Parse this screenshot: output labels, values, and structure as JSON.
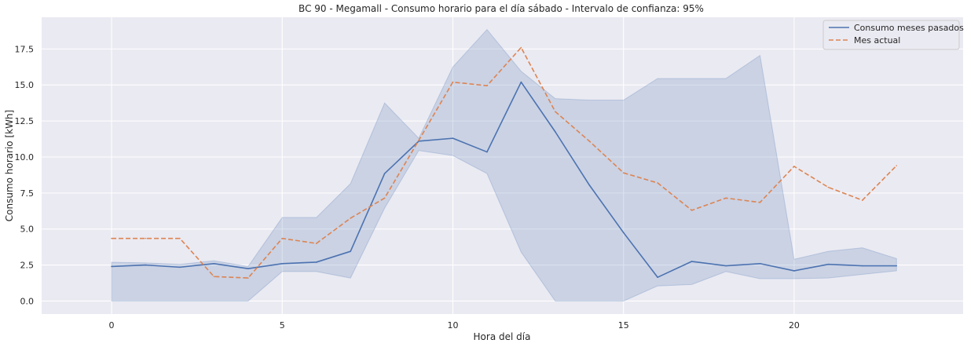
{
  "chart_data": {
    "type": "line",
    "title": "BC 90 - Megamall - Consumo horario para el día sábado - Intervalo de confianza: 95%",
    "xlabel": "Hora del día",
    "ylabel": "Consumo horario [kWh]",
    "xlim": [
      -2.05,
      24.95
    ],
    "ylim": [
      -0.9,
      19.7
    ],
    "xticks": [
      0,
      5,
      10,
      15,
      20
    ],
    "yticks": [
      0.0,
      2.5,
      5.0,
      7.5,
      10.0,
      12.5,
      15.0,
      17.5
    ],
    "ytick_labels": [
      "0.0",
      "2.5",
      "5.0",
      "7.5",
      "10.0",
      "12.5",
      "15.0",
      "17.5"
    ],
    "grid": true,
    "legend_position": "top-right",
    "x": [
      0,
      1,
      2,
      3,
      4,
      5,
      6,
      7,
      8,
      9,
      10,
      11,
      12,
      13,
      14,
      15,
      16,
      17,
      18,
      19,
      20,
      21,
      22,
      23
    ],
    "series": [
      {
        "name": "Consumo meses pasados",
        "color": "#4c72b0",
        "style": "solid",
        "values": [
          2.4,
          2.5,
          2.35,
          2.6,
          2.25,
          2.6,
          2.7,
          3.45,
          8.85,
          11.1,
          11.3,
          10.35,
          15.2,
          11.75,
          8.05,
          4.75,
          1.65,
          2.75,
          2.45,
          2.6,
          2.1,
          2.55,
          2.45,
          2.45
        ],
        "ci_lower": [
          0.0,
          0.0,
          0.0,
          0.0,
          0.0,
          2.05,
          2.05,
          1.6,
          6.45,
          10.45,
          10.1,
          8.85,
          3.4,
          0.0,
          0.0,
          0.0,
          1.05,
          1.15,
          2.05,
          1.55,
          1.55,
          1.6,
          1.85,
          2.1
        ],
        "ci_upper": [
          2.7,
          2.65,
          2.55,
          2.8,
          2.4,
          5.8,
          5.8,
          8.15,
          13.75,
          11.3,
          16.25,
          18.85,
          15.95,
          14.05,
          13.95,
          13.95,
          15.45,
          15.45,
          15.45,
          17.05,
          2.9,
          3.45,
          3.7,
          2.95
        ]
      },
      {
        "name": "Mes actual",
        "color": "#dd8452",
        "style": "dashed",
        "values": [
          4.35,
          4.35,
          4.35,
          1.7,
          1.6,
          4.35,
          4.0,
          5.75,
          7.15,
          11.15,
          15.2,
          14.95,
          17.6,
          13.15,
          11.1,
          8.9,
          8.2,
          6.3,
          7.15,
          6.85,
          9.35,
          7.9,
          7.0,
          9.4
        ]
      }
    ]
  }
}
